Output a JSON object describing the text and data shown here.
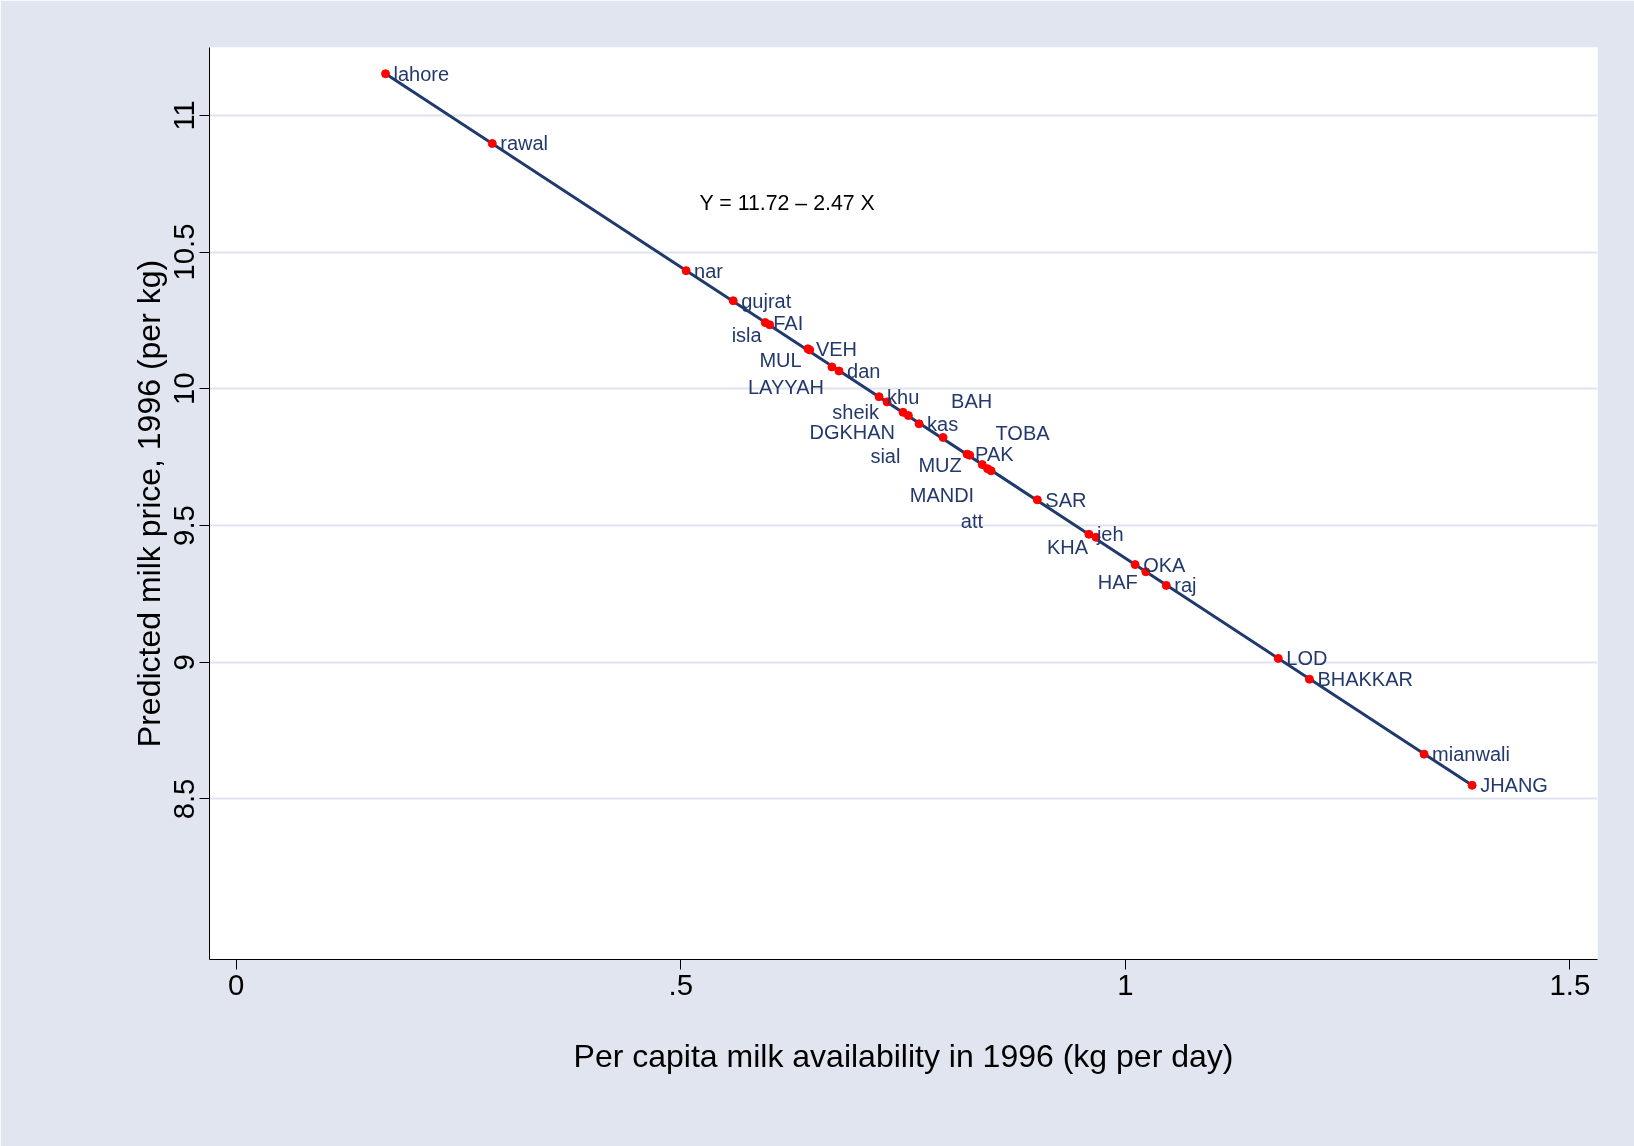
{
  "chart_data": {
    "type": "scatter",
    "xlabel": "Per capita milk availability in 1996 (kg per day)",
    "ylabel": "Predicted milk price, 1996 (per kg)",
    "annotations": [
      "Y = 11.72 – 2.47 X"
    ],
    "xlim": [
      -0.03,
      1.531
    ],
    "ylim": [
      7.913,
      11.248
    ],
    "xticks": [
      0,
      {
        "value": 0.5,
        "label": ".5"
      },
      1,
      1.5
    ],
    "yticks": [
      8.5,
      9,
      9.5,
      10,
      10.5,
      11
    ],
    "grid": "y",
    "series": [
      {
        "type": "line",
        "color": "#1f3a6b",
        "x": [
          0.168,
          1.39
        ],
        "values": [
          11.152,
          8.55
        ]
      },
      {
        "marker": "circle",
        "color": "#ff0000",
        "x": [
          0.168,
          0.288,
          0.506,
          0.559,
          0.595,
          0.6,
          0.643,
          0.645,
          0.67,
          0.678,
          0.723,
          0.732,
          0.75,
          0.756,
          0.768,
          0.795,
          0.822,
          0.825,
          0.839,
          0.845,
          0.849,
          0.901,
          0.959,
          0.967,
          1.011,
          1.023,
          1.046,
          1.172,
          1.207,
          1.336,
          1.39
        ],
        "values": [
          11.152,
          10.897,
          10.432,
          10.322,
          10.242,
          10.234,
          10.146,
          10.142,
          10.08,
          10.065,
          9.971,
          9.952,
          9.914,
          9.902,
          9.872,
          9.822,
          9.761,
          9.757,
          9.723,
          9.708,
          9.7,
          9.594,
          9.468,
          9.457,
          9.357,
          9.331,
          9.281,
          9.014,
          8.938,
          8.664,
          8.55
        ],
        "value_labels": [
          "lahore",
          "rawal",
          "nar",
          "gujrat",
          "FAI",
          "isla",
          "VEH",
          "MUL",
          "LAYYAH",
          "dan",
          "khu",
          "sheik",
          "DGKHAN",
          "sial",
          "kas",
          "BAH",
          "PAK",
          "MUZ",
          "MANDI",
          "TOBA",
          "att",
          "SAR",
          "jeh",
          "KHA",
          "OKA",
          "HAF",
          "raj",
          "LOD",
          "BHAKKAR",
          "mianwali",
          "JHANG"
        ]
      }
    ]
  }
}
